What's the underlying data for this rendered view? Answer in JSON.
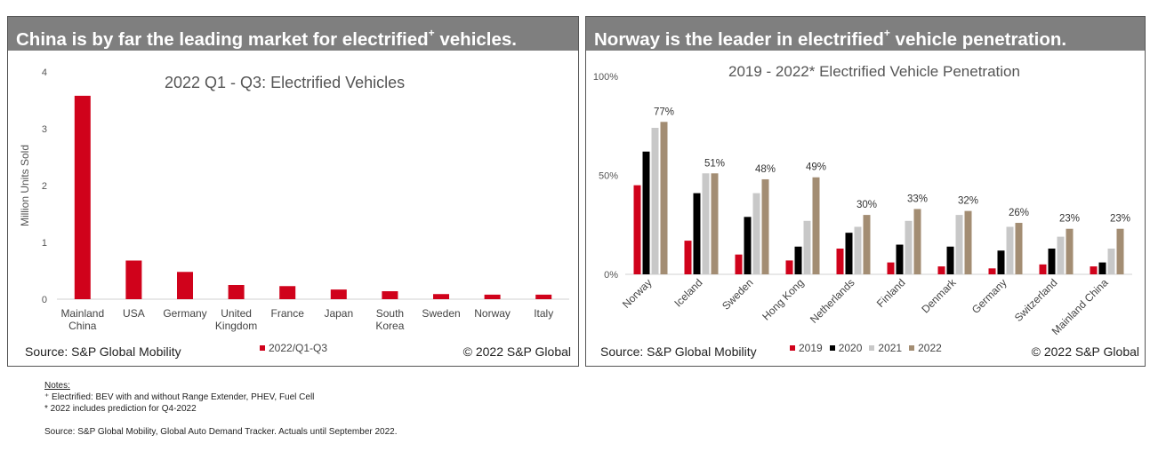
{
  "left": {
    "banner_title": "China is by far the leading market for electrified",
    "banner_sup": "+",
    "banner_tail": " vehicles.",
    "source": "Source: S&P Global Mobility",
    "copyright": "© 2022 S&P Global"
  },
  "right": {
    "banner_title": "Norway is the leader in electrified",
    "banner_sup": "+",
    "banner_tail": " vehicle penetration.",
    "source": "Source: S&P Global Mobility",
    "copyright": "© 2022 S&P Global"
  },
  "notes": {
    "heading": "Notes:",
    "line1": "⁺ Electrified: BEV with and without Range Extender, PHEV, Fuel Cell",
    "line2": "* 2022 includes prediction for Q4-2022",
    "source_line": "Source: S&P Global Mobility, Global Auto Demand Tracker. Actuals until September 2022."
  },
  "chart_data": [
    {
      "type": "bar",
      "title": "2022 Q1 - Q3: Electrified Vehicles",
      "ylabel": "Million Units Sold",
      "xlabel": "",
      "ylim": [
        0,
        4
      ],
      "yticks": [
        "0",
        "1",
        "2",
        "3",
        "4"
      ],
      "categories": [
        "Mainland China",
        "USA",
        "Germany",
        "United Kingdom",
        "France",
        "Japan",
        "South Korea",
        "Sweden",
        "Norway",
        "Italy"
      ],
      "series": [
        {
          "name": "2022/Q1-Q3",
          "color": "#d0021b",
          "values": [
            3.58,
            0.68,
            0.48,
            0.25,
            0.23,
            0.17,
            0.14,
            0.09,
            0.08,
            0.08
          ]
        }
      ],
      "legend_position": "bottom",
      "grid": false
    },
    {
      "type": "bar",
      "title": "2019 - 2022* Electrified Vehicle Penetration",
      "ylabel": "",
      "xlabel": "",
      "ylim": [
        0,
        100
      ],
      "yticks": [
        "0%",
        "50%",
        "100%"
      ],
      "categories": [
        "Norway",
        "Iceland",
        "Sweden",
        "Hong Kong",
        "Netherlands",
        "Finland",
        "Denmark",
        "Germany",
        "Switzerland",
        "Mainland China"
      ],
      "series": [
        {
          "name": "2019",
          "color": "#d0021b",
          "values": [
            45,
            17,
            10,
            7,
            13,
            6,
            4,
            3,
            5,
            4
          ]
        },
        {
          "name": "2020",
          "color": "#000000",
          "values": [
            62,
            41,
            29,
            14,
            21,
            15,
            14,
            12,
            13,
            6
          ]
        },
        {
          "name": "2021",
          "color": "#c8c8c8",
          "values": [
            74,
            51,
            41,
            27,
            24,
            27,
            30,
            24,
            19,
            13
          ]
        },
        {
          "name": "2022",
          "color": "#a38d73",
          "values": [
            77,
            51,
            48,
            49,
            30,
            33,
            32,
            26,
            23,
            23
          ]
        }
      ],
      "data_labels": [
        "77%",
        "51%",
        "48%",
        "49%",
        "30%",
        "33%",
        "32%",
        "26%",
        "23%",
        "23%"
      ],
      "legend_position": "bottom",
      "grid": false
    }
  ]
}
